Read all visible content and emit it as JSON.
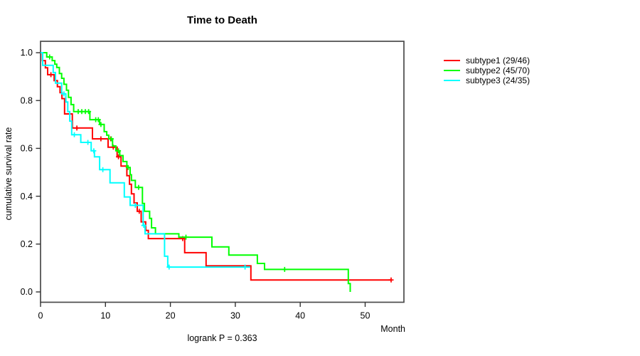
{
  "title": "Time to Death",
  "footnote": "logrank P = 0.363",
  "axes": {
    "x": {
      "label": "Month",
      "ticks": [
        0,
        10,
        20,
        30,
        40,
        50
      ],
      "max": 56
    },
    "y": {
      "label": "cumulative survival rate",
      "tick_labels": [
        "0.0",
        "0.2",
        "0.4",
        "0.6",
        "0.8",
        "1.0"
      ]
    }
  },
  "chart_data": {
    "type": "line",
    "kind": "kaplan-meier-step",
    "title": "Time to Death",
    "xlabel": "Month",
    "ylabel": "cumulative survival rate",
    "annotation": "logrank P = 0.363",
    "xlim": [
      0,
      56
    ],
    "ylim": [
      0,
      1
    ],
    "grid": false,
    "legend_position": "right-outside",
    "series": [
      {
        "name": "subtype1",
        "label": "subtype1 (29/46)",
        "events": 29,
        "n": 46,
        "color": "#ff0000",
        "points": [
          [
            0,
            1.0
          ],
          [
            0.28,
            0.967
          ],
          [
            0.74,
            0.937
          ],
          [
            1.1,
            0.908
          ],
          [
            2.1,
            0.883
          ],
          [
            2.6,
            0.858
          ],
          [
            3.0,
            0.833
          ],
          [
            3.3,
            0.808
          ],
          [
            3.7,
            0.744
          ],
          [
            4.9,
            0.685
          ],
          [
            8.0,
            0.64
          ],
          [
            10.4,
            0.605
          ],
          [
            11.8,
            0.565
          ],
          [
            12.4,
            0.526
          ],
          [
            13.3,
            0.486
          ],
          [
            13.7,
            0.45
          ],
          [
            14.0,
            0.41
          ],
          [
            14.4,
            0.372
          ],
          [
            14.9,
            0.337
          ],
          [
            15.5,
            0.293
          ],
          [
            16.2,
            0.257
          ],
          [
            16.6,
            0.223
          ],
          [
            22.2,
            0.164
          ],
          [
            25.5,
            0.109
          ],
          [
            32.4,
            0.05
          ]
        ],
        "end_time": 54.0,
        "censors": [
          [
            1.6,
            0.908
          ],
          [
            5.6,
            0.685
          ],
          [
            9.3,
            0.64
          ],
          [
            10.8,
            0.64
          ],
          [
            11.2,
            0.605
          ],
          [
            12.0,
            0.565
          ],
          [
            15.2,
            0.337
          ],
          [
            21.9,
            0.223
          ],
          [
            54.0,
            0.05
          ]
        ]
      },
      {
        "name": "subtype2",
        "label": "subtype2 (45/70)",
        "events": 45,
        "n": 70,
        "color": "#00ff00",
        "points": [
          [
            0,
            1.0
          ],
          [
            0.95,
            0.982
          ],
          [
            1.8,
            0.967
          ],
          [
            2.2,
            0.952
          ],
          [
            2.5,
            0.938
          ],
          [
            2.9,
            0.913
          ],
          [
            3.25,
            0.893
          ],
          [
            3.6,
            0.868
          ],
          [
            4.0,
            0.843
          ],
          [
            4.3,
            0.813
          ],
          [
            4.7,
            0.783
          ],
          [
            5.1,
            0.754
          ],
          [
            7.6,
            0.72
          ],
          [
            9.1,
            0.7
          ],
          [
            9.8,
            0.67
          ],
          [
            10.2,
            0.655
          ],
          [
            10.5,
            0.64
          ],
          [
            11.1,
            0.61
          ],
          [
            11.6,
            0.59
          ],
          [
            12.2,
            0.57
          ],
          [
            12.7,
            0.545
          ],
          [
            13.3,
            0.52
          ],
          [
            13.8,
            0.49
          ],
          [
            14.0,
            0.466
          ],
          [
            14.6,
            0.437
          ],
          [
            15.7,
            0.37
          ],
          [
            16.0,
            0.337
          ],
          [
            16.8,
            0.307
          ],
          [
            17.1,
            0.268
          ],
          [
            17.7,
            0.243
          ],
          [
            21.3,
            0.229
          ],
          [
            26.4,
            0.188
          ],
          [
            29.0,
            0.154
          ],
          [
            33.4,
            0.119
          ],
          [
            34.5,
            0.094
          ],
          [
            47.4,
            0.035
          ],
          [
            47.7,
            0.0
          ]
        ],
        "end_time": 47.7,
        "censors": [
          [
            1.4,
            0.982
          ],
          [
            5.8,
            0.754
          ],
          [
            6.35,
            0.754
          ],
          [
            6.9,
            0.754
          ],
          [
            7.4,
            0.754
          ],
          [
            8.5,
            0.72
          ],
          [
            8.9,
            0.72
          ],
          [
            9.3,
            0.7
          ],
          [
            10.9,
            0.64
          ],
          [
            12.0,
            0.59
          ],
          [
            13.5,
            0.52
          ],
          [
            15.1,
            0.437
          ],
          [
            22.4,
            0.229
          ],
          [
            37.6,
            0.094
          ]
        ]
      },
      {
        "name": "subtype3",
        "label": "subtype3 (24/35)",
        "events": 24,
        "n": 35,
        "color": "#00ffff",
        "points": [
          [
            0,
            1.0
          ],
          [
            0.33,
            0.947
          ],
          [
            1.95,
            0.917
          ],
          [
            2.3,
            0.873
          ],
          [
            3.25,
            0.828
          ],
          [
            3.9,
            0.794
          ],
          [
            4.2,
            0.754
          ],
          [
            4.5,
            0.714
          ],
          [
            4.8,
            0.657
          ],
          [
            6.2,
            0.625
          ],
          [
            7.8,
            0.59
          ],
          [
            8.3,
            0.565
          ],
          [
            9.1,
            0.511
          ],
          [
            10.7,
            0.456
          ],
          [
            12.9,
            0.397
          ],
          [
            13.8,
            0.362
          ],
          [
            15.8,
            0.278
          ],
          [
            16.1,
            0.243
          ],
          [
            19.1,
            0.149
          ],
          [
            19.6,
            0.104
          ]
        ],
        "end_time": 32.3,
        "censors": [
          [
            3.6,
            0.828
          ],
          [
            5.2,
            0.657
          ],
          [
            7.3,
            0.625
          ],
          [
            8.2,
            0.59
          ],
          [
            9.6,
            0.511
          ],
          [
            14.6,
            0.362
          ],
          [
            15.9,
            0.278
          ],
          [
            19.8,
            0.104
          ],
          [
            31.5,
            0.104
          ]
        ]
      }
    ]
  },
  "style": {
    "box_color": "#4a4a4a",
    "tick_color": "#333333",
    "line_width": 2
  }
}
